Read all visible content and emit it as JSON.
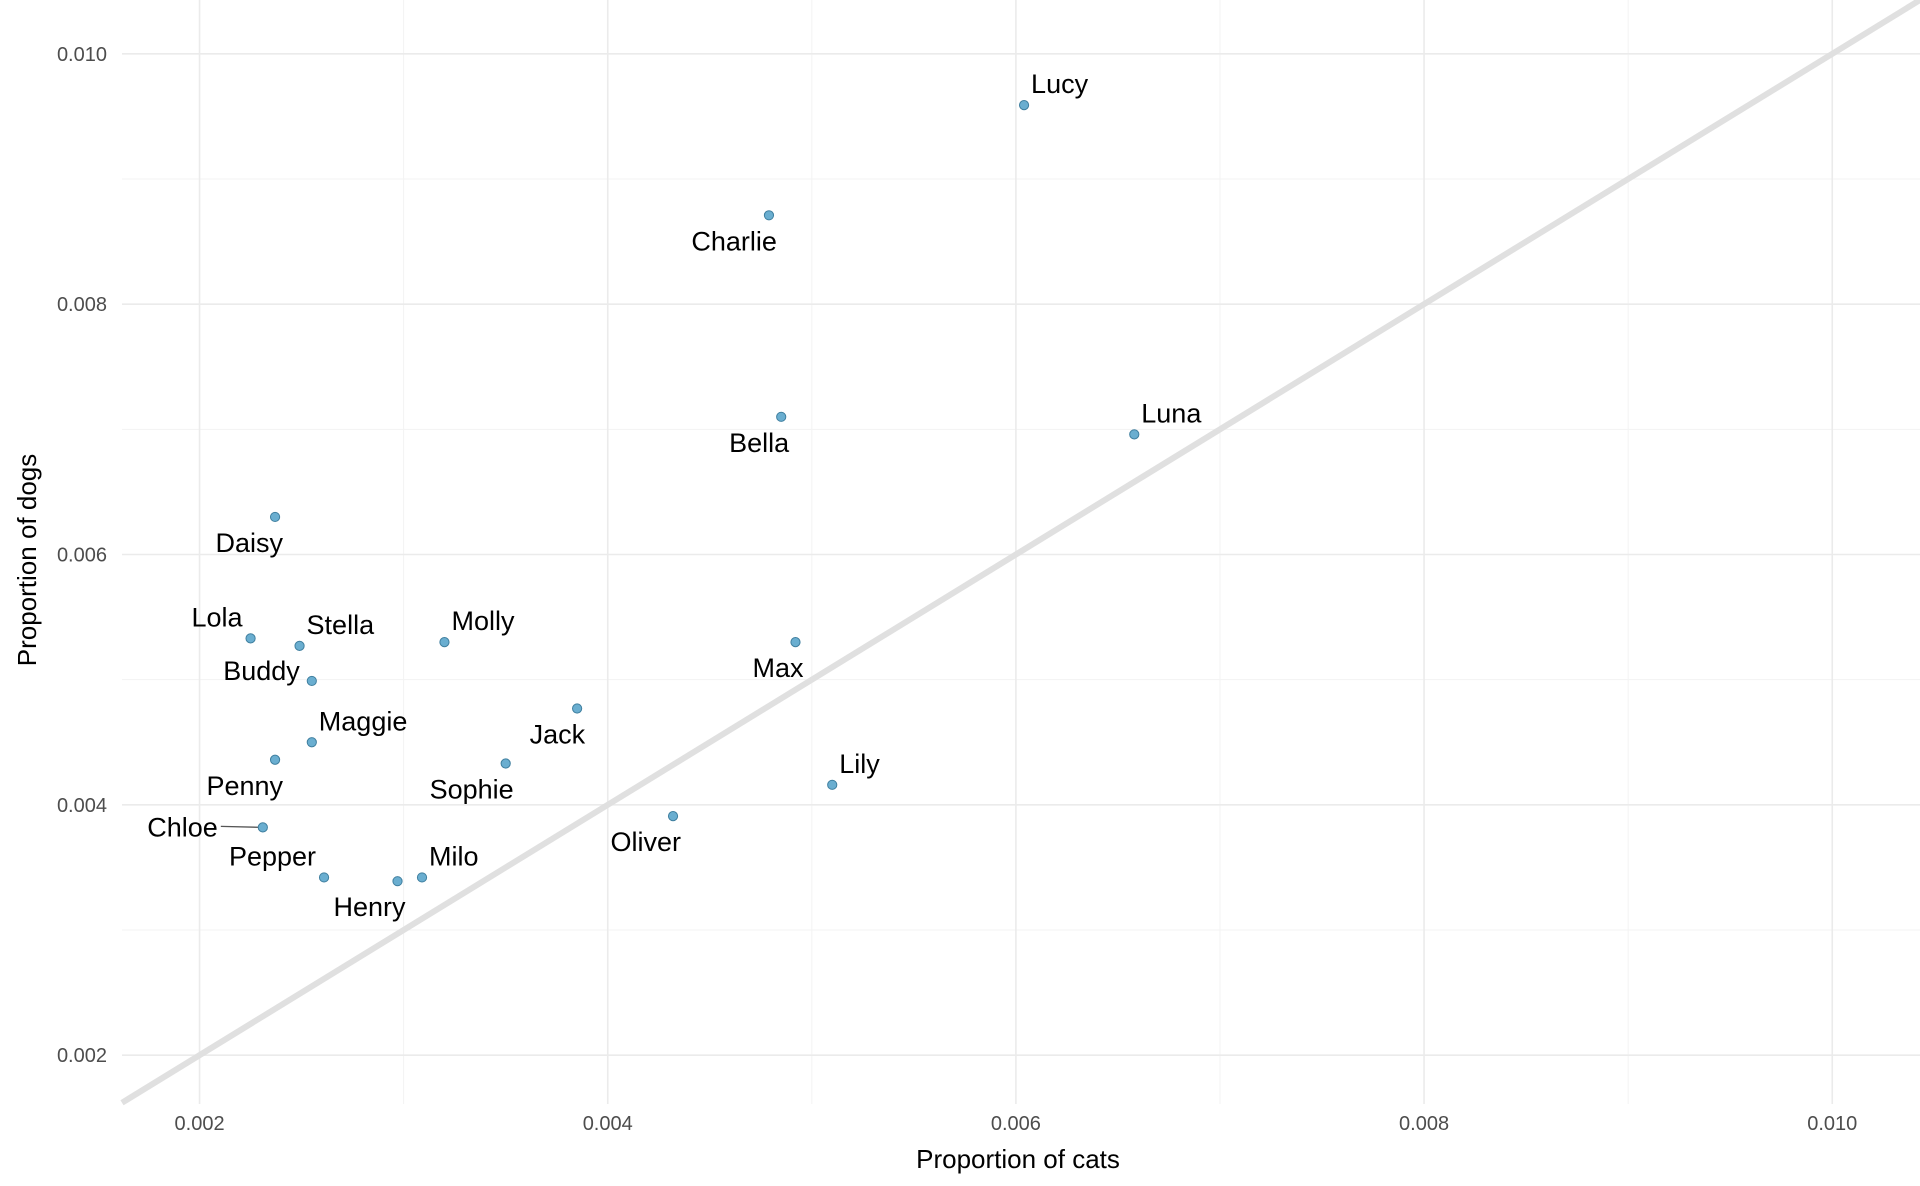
{
  "chart_data": {
    "type": "scatter",
    "title": "",
    "xlabel": "Proportion of cats",
    "ylabel": "Proportion of dogs",
    "xlim": [
      0.00162,
      0.01043
    ],
    "ylim": [
      0.00161,
      0.01043
    ],
    "x_ticks": [
      0.002,
      0.004,
      0.006,
      0.008,
      0.01
    ],
    "x_tick_labels": [
      "0.002",
      "0.004",
      "0.006",
      "0.008",
      "0.010"
    ],
    "y_ticks": [
      0.002,
      0.004,
      0.006,
      0.008,
      0.01
    ],
    "y_tick_labels": [
      "0.002",
      "0.004",
      "0.006",
      "0.008",
      "0.010"
    ],
    "grid": true,
    "reference_line": "y = x",
    "point_color": "#6aaed0",
    "reference_line_color": "#e0e0e0",
    "points": [
      {
        "label": "Lucy",
        "x": 0.00604,
        "y": 0.00959,
        "label_pos": "above-right"
      },
      {
        "label": "Charlie",
        "x": 0.00479,
        "y": 0.00871,
        "label_pos": "below-left"
      },
      {
        "label": "Bella",
        "x": 0.00485,
        "y": 0.0071,
        "label_pos": "below-left"
      },
      {
        "label": "Luna",
        "x": 0.00658,
        "y": 0.00696,
        "label_pos": "above-right"
      },
      {
        "label": "Daisy",
        "x": 0.00237,
        "y": 0.0063,
        "label_pos": "below-left"
      },
      {
        "label": "Lola",
        "x": 0.00225,
        "y": 0.00533,
        "label_pos": "above-left"
      },
      {
        "label": "Stella",
        "x": 0.00249,
        "y": 0.00527,
        "label_pos": "above-right"
      },
      {
        "label": "Molly",
        "x": 0.0032,
        "y": 0.0053,
        "label_pos": "above-right"
      },
      {
        "label": "Max",
        "x": 0.00492,
        "y": 0.0053,
        "label_pos": "below-left"
      },
      {
        "label": "Buddy",
        "x": 0.00255,
        "y": 0.00499,
        "label_pos": "left"
      },
      {
        "label": "Maggie",
        "x": 0.00255,
        "y": 0.0045,
        "label_pos": "above-right"
      },
      {
        "label": "Jack",
        "x": 0.00385,
        "y": 0.00477,
        "label_pos": "below-left"
      },
      {
        "label": "Penny",
        "x": 0.00237,
        "y": 0.00436,
        "label_pos": "below-left"
      },
      {
        "label": "Sophie",
        "x": 0.0035,
        "y": 0.00433,
        "label_pos": "below-left"
      },
      {
        "label": "Lily",
        "x": 0.0051,
        "y": 0.00416,
        "label_pos": "above-right"
      },
      {
        "label": "Oliver",
        "x": 0.00432,
        "y": 0.00391,
        "label_pos": "below-left"
      },
      {
        "label": "Chloe",
        "x": 0.00231,
        "y": 0.00382,
        "label_pos": "left-leader"
      },
      {
        "label": "Pepper",
        "x": 0.00261,
        "y": 0.00342,
        "label_pos": "above-left"
      },
      {
        "label": "Milo",
        "x": 0.00309,
        "y": 0.00342,
        "label_pos": "above-right"
      },
      {
        "label": "Henry",
        "x": 0.00297,
        "y": 0.00339,
        "label_pos": "below-left"
      }
    ]
  }
}
